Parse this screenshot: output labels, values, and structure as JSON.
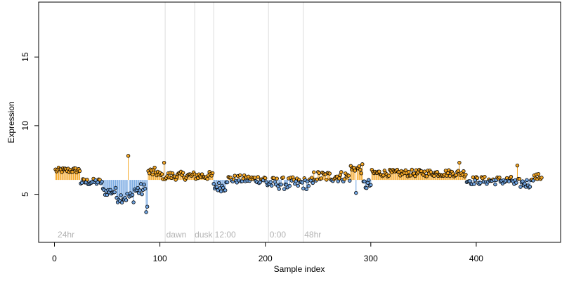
{
  "chart_data": {
    "type": "scatter",
    "title": "",
    "xlabel": "Sample index",
    "ylabel": "Expression",
    "xlim": [
      -15,
      480
    ],
    "ylim": [
      1.5,
      19.0
    ],
    "x_ticks": [
      0,
      100,
      200,
      300,
      400
    ],
    "y_ticks": [
      5,
      10,
      15
    ],
    "baseline": 6.05,
    "colors": {
      "above": "#f5a623",
      "below": "#6fa3e0",
      "point_stroke": "#000000",
      "guide": "#dddddd",
      "annotation": "#b3b3b3"
    },
    "vlines": [
      105,
      133,
      151,
      203,
      236
    ],
    "annotations": [
      {
        "label": "24hr",
        "x": 3
      },
      {
        "label": "dawn",
        "x": 106
      },
      {
        "label": "dusk",
        "x": 133
      },
      {
        "label": "12:00",
        "x": 152
      },
      {
        "label": "0:00",
        "x": 204
      },
      {
        "label": "48hr",
        "x": 237
      }
    ],
    "segments": [
      {
        "x": [
          1,
          24
        ],
        "base": 6.75,
        "amp": 0.2
      },
      {
        "x": [
          25,
          45
        ],
        "base": 5.9,
        "amp": 0.25
      },
      {
        "x": [
          46,
          58
        ],
        "base": 5.2,
        "amp": 0.3
      },
      {
        "x": [
          59,
          75
        ],
        "base": 4.8,
        "amp": 0.4
      },
      {
        "x": [
          76,
          88
        ],
        "base": 5.3,
        "amp": 0.5
      },
      {
        "x": [
          89,
          98
        ],
        "base": 6.6,
        "amp": 0.35
      },
      {
        "x": [
          99,
          150
        ],
        "base": 6.35,
        "amp": 0.3
      },
      {
        "x": [
          151,
          162
        ],
        "base": 5.55,
        "amp": 0.35
      },
      {
        "x": [
          163,
          200
        ],
        "base": 6.1,
        "amp": 0.3
      },
      {
        "x": [
          201,
          245
        ],
        "base": 5.8,
        "amp": 0.45
      },
      {
        "x": [
          246,
          280
        ],
        "base": 6.3,
        "amp": 0.4
      },
      {
        "x": [
          281,
          292
        ],
        "base": 6.85,
        "amp": 0.35
      },
      {
        "x": [
          293,
          300
        ],
        "base": 5.7,
        "amp": 0.4
      },
      {
        "x": [
          301,
          390
        ],
        "base": 6.55,
        "amp": 0.25
      },
      {
        "x": [
          391,
          435
        ],
        "base": 6.0,
        "amp": 0.3
      },
      {
        "x": [
          436,
          452
        ],
        "base": 5.8,
        "amp": 0.35
      },
      {
        "x": [
          453,
          462
        ],
        "base": 6.25,
        "amp": 0.25
      }
    ],
    "outliers": [
      {
        "x": 70,
        "y": 7.8
      },
      {
        "x": 87,
        "y": 3.7
      },
      {
        "x": 88,
        "y": 4.1
      },
      {
        "x": 104,
        "y": 7.3
      },
      {
        "x": 286,
        "y": 5.1
      },
      {
        "x": 384,
        "y": 7.3
      },
      {
        "x": 439,
        "y": 7.1
      }
    ]
  }
}
